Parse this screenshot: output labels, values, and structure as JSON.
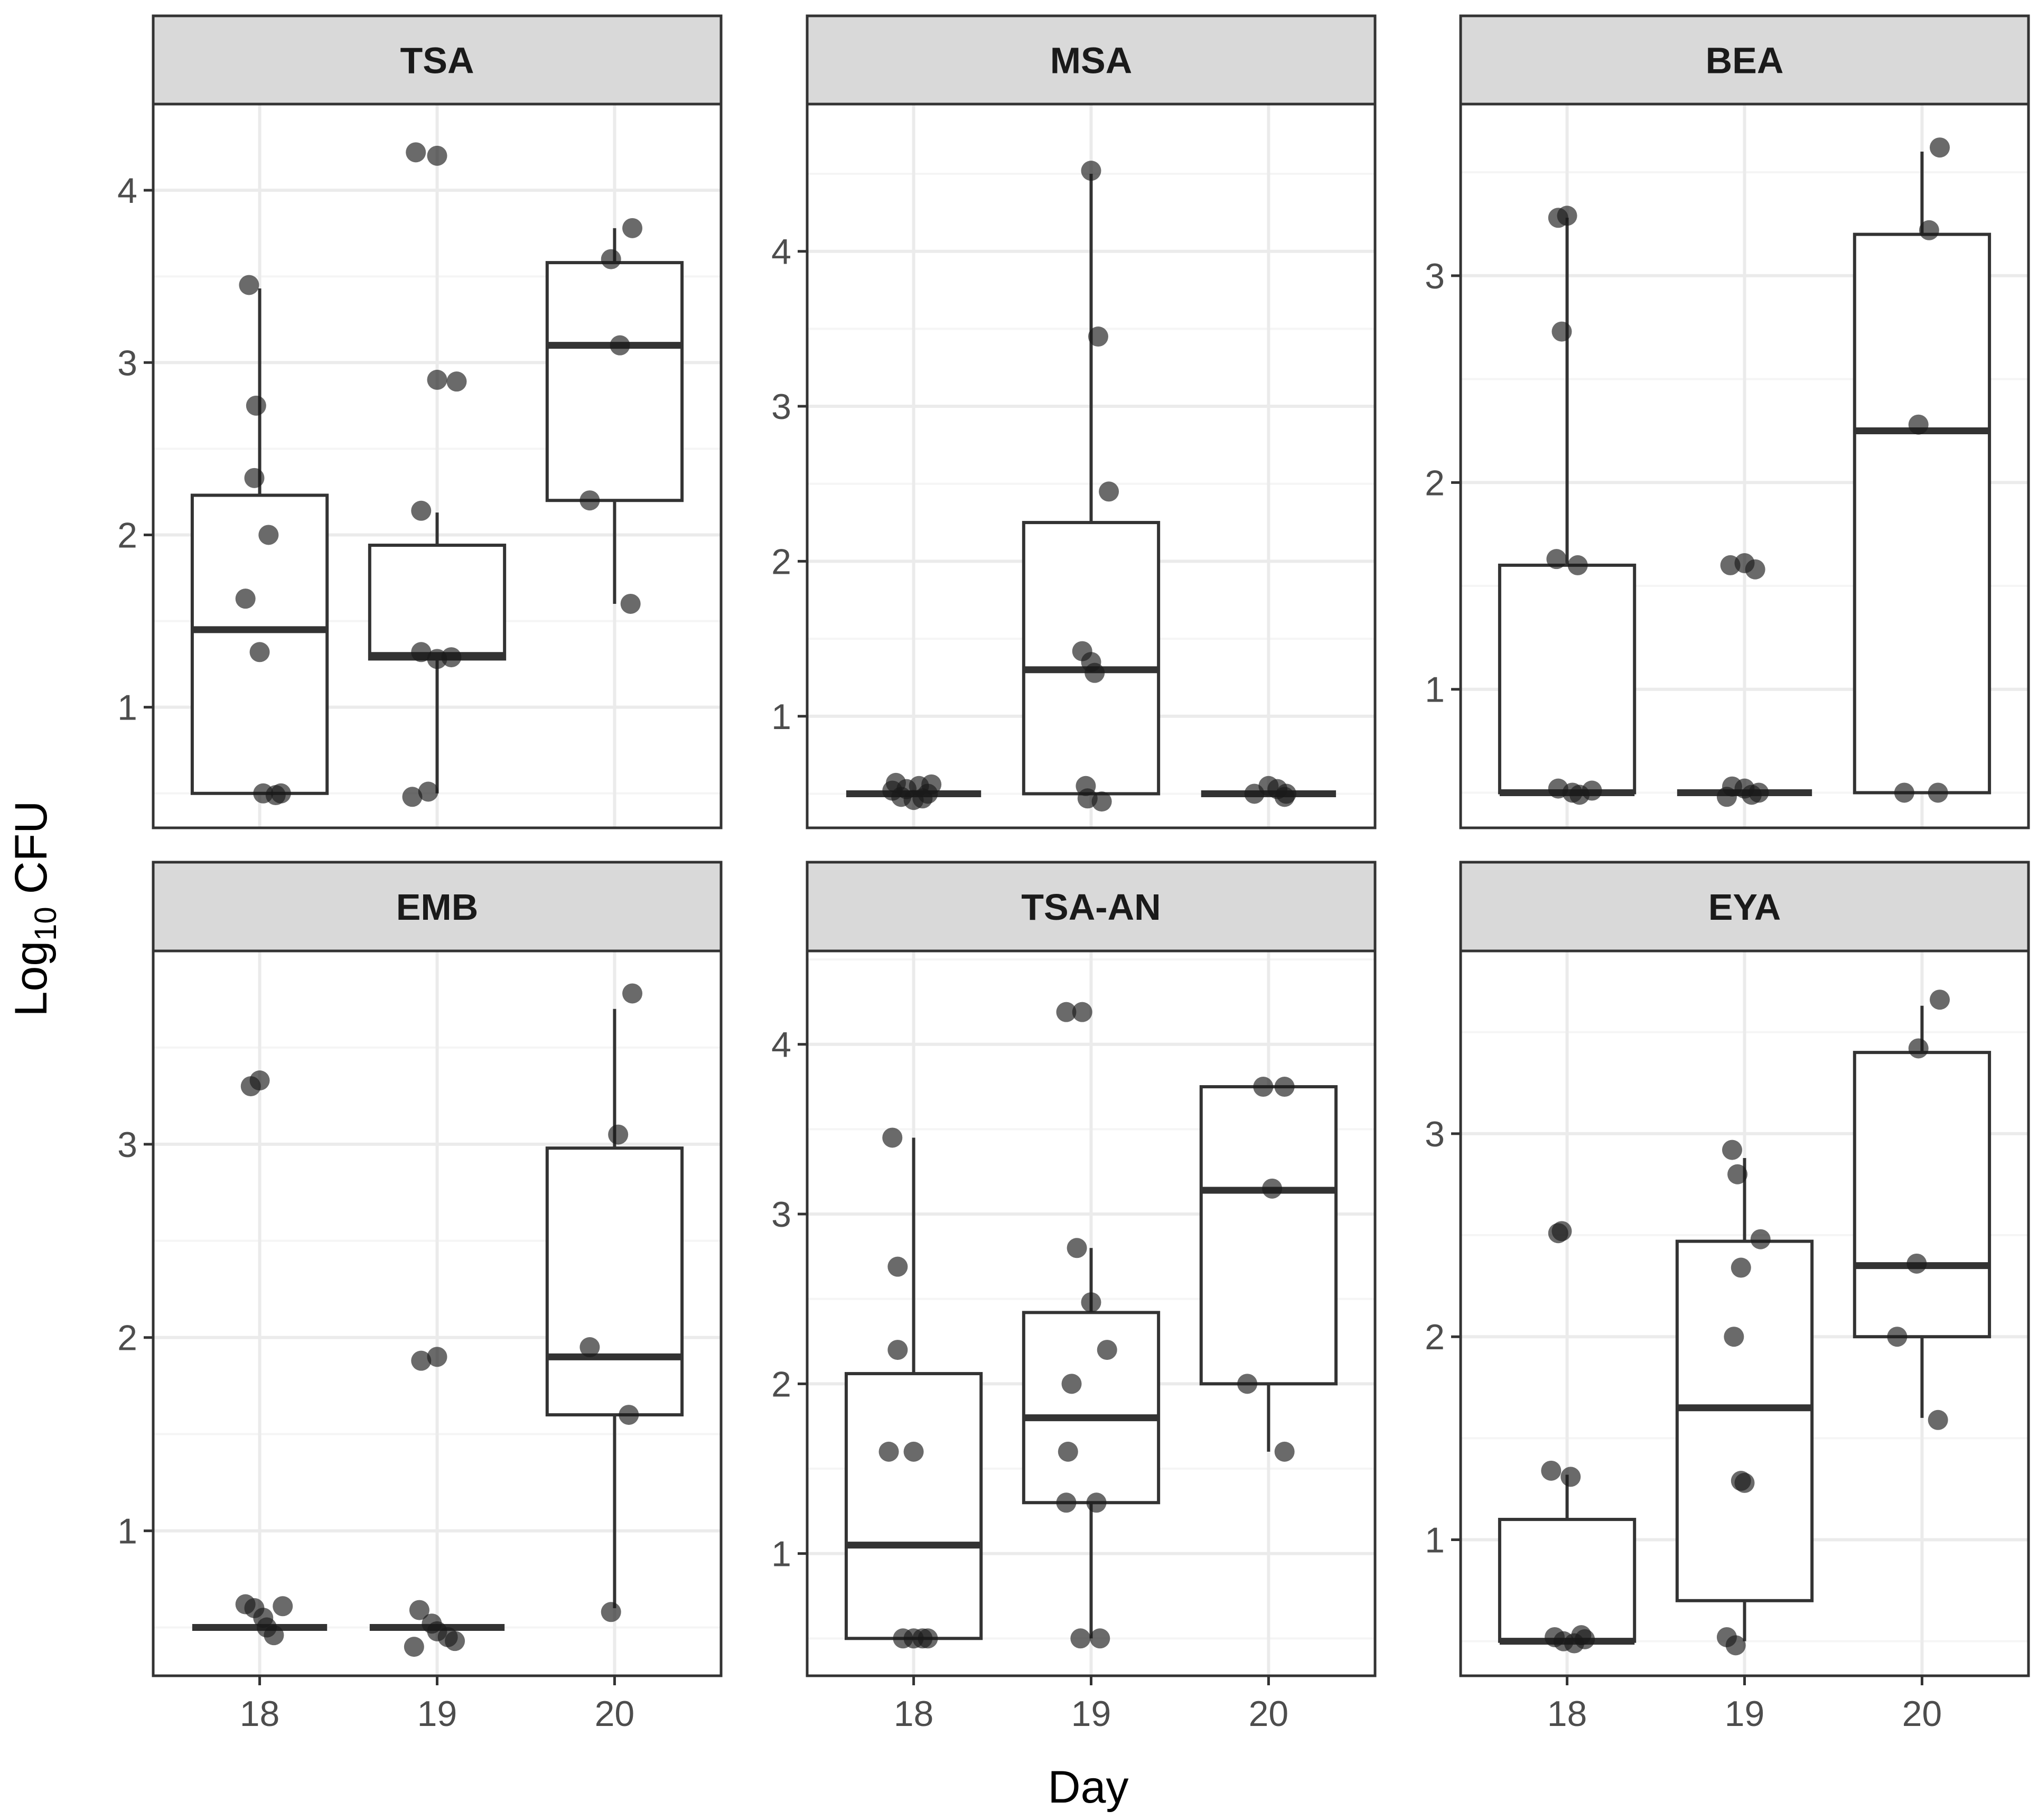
{
  "chart_data": {
    "type": "box",
    "xlabel": "Day",
    "ylabel": {
      "base": "Log",
      "subscript": "10",
      "suffix": " CFU"
    },
    "categories": [
      "18",
      "19",
      "20"
    ],
    "colors": {
      "point": "#1a1a1a",
      "box": "#333333",
      "strip_fill": "#d9d9d9",
      "panel_border": "#333333",
      "grid_major": "#ebebeb",
      "grid_minor": "#f5f5f5"
    },
    "panels": [
      {
        "title": "TSA",
        "ylim": [
          0.3,
          4.5
        ],
        "yticks": [
          1,
          2,
          3,
          4
        ],
        "boxes": [
          {
            "x": "18",
            "q1": 0.5,
            "median": 1.45,
            "q3": 2.23,
            "whisker_low": 0.5,
            "whisker_high": 3.43
          },
          {
            "x": "19",
            "q1": 1.28,
            "median": 1.3,
            "q3": 1.94,
            "whisker_low": 0.5,
            "whisker_high": 2.13
          },
          {
            "x": "20",
            "q1": 2.2,
            "median": 3.1,
            "q3": 3.58,
            "whisker_low": 1.6,
            "whisker_high": 3.78
          }
        ],
        "points": [
          {
            "x": "18",
            "y": 3.45,
            "dx": -0.06
          },
          {
            "x": "18",
            "y": 2.75,
            "dx": -0.02
          },
          {
            "x": "18",
            "y": 2.33,
            "dx": -0.03
          },
          {
            "x": "18",
            "y": 2.0,
            "dx": 0.05
          },
          {
            "x": "18",
            "y": 1.63,
            "dx": -0.08
          },
          {
            "x": "18",
            "y": 1.32,
            "dx": 0.0
          },
          {
            "x": "18",
            "y": 0.5,
            "dx": 0.02
          },
          {
            "x": "18",
            "y": 0.49,
            "dx": 0.09
          },
          {
            "x": "18",
            "y": 0.5,
            "dx": 0.12
          },
          {
            "x": "19",
            "y": 4.22,
            "dx": -0.12
          },
          {
            "x": "19",
            "y": 4.2,
            "dx": 0.0
          },
          {
            "x": "19",
            "y": 2.9,
            "dx": 0.0
          },
          {
            "x": "19",
            "y": 2.89,
            "dx": 0.11
          },
          {
            "x": "19",
            "y": 2.14,
            "dx": -0.09
          },
          {
            "x": "19",
            "y": 1.32,
            "dx": -0.09
          },
          {
            "x": "19",
            "y": 1.28,
            "dx": 0.0
          },
          {
            "x": "19",
            "y": 1.29,
            "dx": 0.08
          },
          {
            "x": "19",
            "y": 0.48,
            "dx": -0.14
          },
          {
            "x": "19",
            "y": 0.51,
            "dx": -0.05
          },
          {
            "x": "20",
            "y": 3.78,
            "dx": 0.1
          },
          {
            "x": "20",
            "y": 3.6,
            "dx": -0.02
          },
          {
            "x": "20",
            "y": 3.1,
            "dx": 0.03
          },
          {
            "x": "20",
            "y": 2.2,
            "dx": -0.14
          },
          {
            "x": "20",
            "y": 1.6,
            "dx": 0.09
          }
        ]
      },
      {
        "title": "MSA",
        "ylim": [
          0.28,
          4.95
        ],
        "yticks": [
          1,
          2,
          3,
          4
        ],
        "boxes": [
          {
            "x": "18",
            "q1": 0.5,
            "median": 0.5,
            "q3": 0.5,
            "whisker_low": 0.5,
            "whisker_high": 0.5
          },
          {
            "x": "19",
            "q1": 0.5,
            "median": 1.3,
            "q3": 2.25,
            "whisker_low": 0.5,
            "whisker_high": 4.5
          },
          {
            "x": "20",
            "q1": 0.5,
            "median": 0.5,
            "q3": 0.5,
            "whisker_low": 0.5,
            "whisker_high": 0.5
          }
        ],
        "points": [
          {
            "x": "18",
            "y": 0.57,
            "dx": -0.1
          },
          {
            "x": "18",
            "y": 0.53,
            "dx": -0.04
          },
          {
            "x": "18",
            "y": 0.48,
            "dx": -0.07
          },
          {
            "x": "18",
            "y": 0.55,
            "dx": 0.03
          },
          {
            "x": "18",
            "y": 0.46,
            "dx": 0.0
          },
          {
            "x": "18",
            "y": 0.5,
            "dx": 0.08
          },
          {
            "x": "18",
            "y": 0.56,
            "dx": 0.1
          },
          {
            "x": "18",
            "y": 0.47,
            "dx": 0.05
          },
          {
            "x": "18",
            "y": 0.52,
            "dx": -0.12
          },
          {
            "x": "19",
            "y": 4.52,
            "dx": 0.0
          },
          {
            "x": "19",
            "y": 3.45,
            "dx": 0.04
          },
          {
            "x": "19",
            "y": 2.45,
            "dx": 0.1
          },
          {
            "x": "19",
            "y": 1.42,
            "dx": -0.05
          },
          {
            "x": "19",
            "y": 1.35,
            "dx": 0.0
          },
          {
            "x": "19",
            "y": 1.28,
            "dx": 0.02
          },
          {
            "x": "19",
            "y": 0.55,
            "dx": -0.03
          },
          {
            "x": "19",
            "y": 0.47,
            "dx": -0.02
          },
          {
            "x": "19",
            "y": 0.45,
            "dx": 0.06
          },
          {
            "x": "20",
            "y": 0.5,
            "dx": -0.08
          },
          {
            "x": "20",
            "y": 0.55,
            "dx": 0.0
          },
          {
            "x": "20",
            "y": 0.53,
            "dx": 0.05
          },
          {
            "x": "20",
            "y": 0.5,
            "dx": 0.1
          },
          {
            "x": "20",
            "y": 0.48,
            "dx": 0.09
          }
        ]
      },
      {
        "title": "BEA",
        "ylim": [
          0.33,
          3.83
        ],
        "yticks": [
          1,
          2,
          3
        ],
        "boxes": [
          {
            "x": "18",
            "q1": 0.5,
            "median": 0.5,
            "q3": 1.6,
            "whisker_low": 0.5,
            "whisker_high": 3.28
          },
          {
            "x": "19",
            "q1": 0.5,
            "median": 0.5,
            "q3": 0.5,
            "whisker_low": 0.5,
            "whisker_high": 0.5
          },
          {
            "x": "20",
            "q1": 0.5,
            "median": 2.25,
            "q3": 3.2,
            "whisker_low": 0.5,
            "whisker_high": 3.6
          }
        ],
        "points": [
          {
            "x": "18",
            "y": 3.28,
            "dx": -0.05
          },
          {
            "x": "18",
            "y": 3.29,
            "dx": 0.0
          },
          {
            "x": "18",
            "y": 2.73,
            "dx": -0.03
          },
          {
            "x": "18",
            "y": 1.63,
            "dx": -0.06
          },
          {
            "x": "18",
            "y": 1.6,
            "dx": 0.06
          },
          {
            "x": "18",
            "y": 0.52,
            "dx": -0.05
          },
          {
            "x": "18",
            "y": 0.5,
            "dx": 0.03
          },
          {
            "x": "18",
            "y": 0.49,
            "dx": 0.07
          },
          {
            "x": "18",
            "y": 0.51,
            "dx": 0.14
          },
          {
            "x": "19",
            "y": 1.6,
            "dx": -0.08
          },
          {
            "x": "19",
            "y": 1.61,
            "dx": 0.0
          },
          {
            "x": "19",
            "y": 1.58,
            "dx": 0.06
          },
          {
            "x": "19",
            "y": 0.53,
            "dx": -0.07
          },
          {
            "x": "19",
            "y": 0.48,
            "dx": -0.1
          },
          {
            "x": "19",
            "y": 0.52,
            "dx": 0.0
          },
          {
            "x": "19",
            "y": 0.49,
            "dx": 0.04
          },
          {
            "x": "19",
            "y": 0.5,
            "dx": 0.08
          },
          {
            "x": "20",
            "y": 3.62,
            "dx": 0.1
          },
          {
            "x": "20",
            "y": 3.22,
            "dx": 0.04
          },
          {
            "x": "20",
            "y": 2.28,
            "dx": -0.02
          },
          {
            "x": "20",
            "y": 0.5,
            "dx": -0.1
          },
          {
            "x": "20",
            "y": 0.5,
            "dx": 0.09
          }
        ]
      },
      {
        "title": "EMB",
        "ylim": [
          0.25,
          4.0
        ],
        "yticks": [
          1,
          2,
          3
        ],
        "boxes": [
          {
            "x": "18",
            "q1": 0.5,
            "median": 0.5,
            "q3": 0.5,
            "whisker_low": 0.5,
            "whisker_high": 0.5
          },
          {
            "x": "19",
            "q1": 0.5,
            "median": 0.5,
            "q3": 0.5,
            "whisker_low": 0.5,
            "whisker_high": 0.5
          },
          {
            "x": "20",
            "q1": 1.6,
            "median": 1.9,
            "q3": 2.98,
            "whisker_low": 0.6,
            "whisker_high": 3.7
          }
        ],
        "points": [
          {
            "x": "18",
            "y": 3.3,
            "dx": -0.05
          },
          {
            "x": "18",
            "y": 3.33,
            "dx": 0.0
          },
          {
            "x": "18",
            "y": 0.62,
            "dx": -0.08
          },
          {
            "x": "18",
            "y": 0.6,
            "dx": -0.03
          },
          {
            "x": "18",
            "y": 0.55,
            "dx": 0.02
          },
          {
            "x": "18",
            "y": 0.5,
            "dx": 0.04
          },
          {
            "x": "18",
            "y": 0.46,
            "dx": 0.08
          },
          {
            "x": "18",
            "y": 0.61,
            "dx": 0.13
          },
          {
            "x": "19",
            "y": 1.88,
            "dx": -0.09
          },
          {
            "x": "19",
            "y": 1.9,
            "dx": 0.0
          },
          {
            "x": "19",
            "y": 0.59,
            "dx": -0.1
          },
          {
            "x": "19",
            "y": 0.4,
            "dx": -0.13
          },
          {
            "x": "19",
            "y": 0.52,
            "dx": -0.03
          },
          {
            "x": "19",
            "y": 0.48,
            "dx": 0.0
          },
          {
            "x": "19",
            "y": 0.45,
            "dx": 0.06
          },
          {
            "x": "19",
            "y": 0.43,
            "dx": 0.1
          },
          {
            "x": "20",
            "y": 3.78,
            "dx": 0.1
          },
          {
            "x": "20",
            "y": 3.05,
            "dx": 0.02
          },
          {
            "x": "20",
            "y": 1.95,
            "dx": -0.14
          },
          {
            "x": "20",
            "y": 1.6,
            "dx": 0.08
          },
          {
            "x": "20",
            "y": 0.58,
            "dx": -0.02
          }
        ]
      },
      {
        "title": "TSA-AN",
        "ylim": [
          0.28,
          4.55
        ],
        "yticks": [
          1,
          2,
          3,
          4
        ],
        "boxes": [
          {
            "x": "18",
            "q1": 0.5,
            "median": 1.05,
            "q3": 2.06,
            "whisker_low": 0.5,
            "whisker_high": 3.45
          },
          {
            "x": "19",
            "q1": 1.3,
            "median": 1.8,
            "q3": 2.42,
            "whisker_low": 0.5,
            "whisker_high": 2.8
          },
          {
            "x": "20",
            "q1": 2.0,
            "median": 3.14,
            "q3": 3.75,
            "whisker_low": 1.6,
            "whisker_high": 3.75
          }
        ],
        "points": [
          {
            "x": "18",
            "y": 3.45,
            "dx": -0.12
          },
          {
            "x": "18",
            "y": 2.69,
            "dx": -0.09
          },
          {
            "x": "18",
            "y": 2.2,
            "dx": -0.09
          },
          {
            "x": "18",
            "y": 1.6,
            "dx": -0.14
          },
          {
            "x": "18",
            "y": 1.6,
            "dx": 0.0
          },
          {
            "x": "18",
            "y": 0.5,
            "dx": -0.06
          },
          {
            "x": "18",
            "y": 0.5,
            "dx": 0.0
          },
          {
            "x": "18",
            "y": 0.5,
            "dx": 0.05
          },
          {
            "x": "18",
            "y": 0.5,
            "dx": 0.08
          },
          {
            "x": "19",
            "y": 4.19,
            "dx": -0.14
          },
          {
            "x": "19",
            "y": 4.19,
            "dx": -0.05
          },
          {
            "x": "19",
            "y": 2.8,
            "dx": -0.08
          },
          {
            "x": "19",
            "y": 2.48,
            "dx": 0.0
          },
          {
            "x": "19",
            "y": 2.2,
            "dx": 0.09
          },
          {
            "x": "19",
            "y": 2.0,
            "dx": -0.11
          },
          {
            "x": "19",
            "y": 1.6,
            "dx": -0.13
          },
          {
            "x": "19",
            "y": 1.3,
            "dx": -0.14
          },
          {
            "x": "19",
            "y": 1.3,
            "dx": 0.03
          },
          {
            "x": "19",
            "y": 0.5,
            "dx": -0.06
          },
          {
            "x": "19",
            "y": 0.5,
            "dx": 0.05
          },
          {
            "x": "20",
            "y": 3.75,
            "dx": -0.03
          },
          {
            "x": "20",
            "y": 3.75,
            "dx": 0.09
          },
          {
            "x": "20",
            "y": 3.15,
            "dx": 0.02
          },
          {
            "x": "20",
            "y": 2.0,
            "dx": -0.12
          },
          {
            "x": "20",
            "y": 1.6,
            "dx": 0.09
          }
        ]
      },
      {
        "title": "EYA",
        "ylim": [
          0.33,
          3.9
        ],
        "yticks": [
          1,
          2,
          3
        ],
        "boxes": [
          {
            "x": "18",
            "q1": 0.5,
            "median": 0.5,
            "q3": 1.1,
            "whisker_low": 0.5,
            "whisker_high": 1.32
          },
          {
            "x": "19",
            "q1": 0.7,
            "median": 1.65,
            "q3": 2.47,
            "whisker_low": 0.5,
            "whisker_high": 2.88
          },
          {
            "x": "20",
            "q1": 2.0,
            "median": 2.35,
            "q3": 3.4,
            "whisker_low": 1.6,
            "whisker_high": 3.63
          }
        ],
        "points": [
          {
            "x": "18",
            "y": 2.51,
            "dx": -0.05
          },
          {
            "x": "18",
            "y": 2.52,
            "dx": -0.03
          },
          {
            "x": "18",
            "y": 1.34,
            "dx": -0.09
          },
          {
            "x": "18",
            "y": 1.31,
            "dx": 0.02
          },
          {
            "x": "18",
            "y": 0.52,
            "dx": -0.07
          },
          {
            "x": "18",
            "y": 0.5,
            "dx": -0.02
          },
          {
            "x": "18",
            "y": 0.49,
            "dx": 0.04
          },
          {
            "x": "18",
            "y": 0.53,
            "dx": 0.08
          },
          {
            "x": "18",
            "y": 0.51,
            "dx": 0.1
          },
          {
            "x": "19",
            "y": 2.92,
            "dx": -0.07
          },
          {
            "x": "19",
            "y": 2.8,
            "dx": -0.04
          },
          {
            "x": "19",
            "y": 2.48,
            "dx": 0.09
          },
          {
            "x": "19",
            "y": 2.34,
            "dx": -0.02
          },
          {
            "x": "19",
            "y": 2.0,
            "dx": -0.06
          },
          {
            "x": "19",
            "y": 1.29,
            "dx": -0.02
          },
          {
            "x": "19",
            "y": 1.28,
            "dx": 0.0
          },
          {
            "x": "19",
            "y": 0.52,
            "dx": -0.1
          },
          {
            "x": "19",
            "y": 0.48,
            "dx": -0.05
          },
          {
            "x": "20",
            "y": 3.66,
            "dx": 0.1
          },
          {
            "x": "20",
            "y": 3.42,
            "dx": -0.02
          },
          {
            "x": "20",
            "y": 2.36,
            "dx": -0.03
          },
          {
            "x": "20",
            "y": 2.0,
            "dx": -0.14
          },
          {
            "x": "20",
            "y": 1.59,
            "dx": 0.09
          }
        ]
      }
    ]
  }
}
